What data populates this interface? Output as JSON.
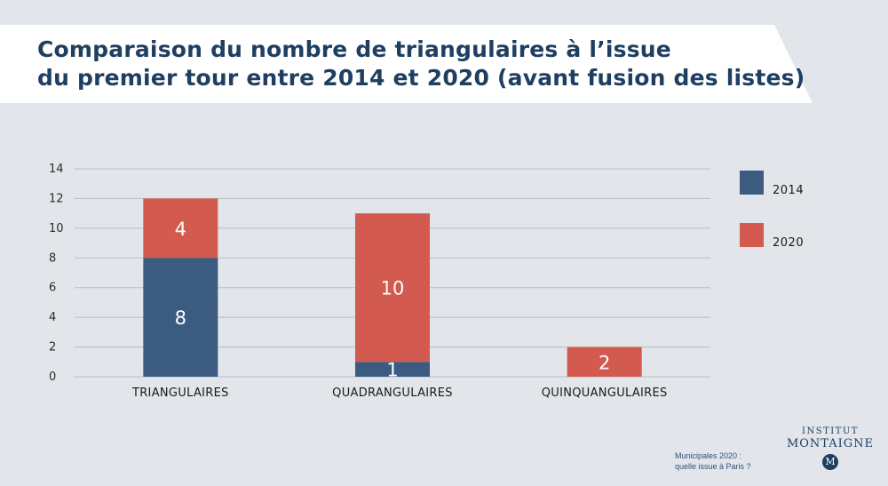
{
  "header": {
    "title_line1": "Comparaison du nombre de triangulaires à l’issue",
    "title_line2": "du premier tour entre 2014 et 2020 (avant fusion des listes)"
  },
  "colors": {
    "s2014": "#3b5c80",
    "s2020": "#d25a4f",
    "grid": "#b9bdc4"
  },
  "chart_data": {
    "type": "bar",
    "stacked": true,
    "title": "Comparaison du nombre de triangulaires à l’issue du premier tour entre 2014 et 2020 (avant fusion des listes)",
    "categories": [
      "TRIANGULAIRES",
      "QUADRANGULAIRES",
      "QUINQUANGULAIRES"
    ],
    "series": [
      {
        "name": "2014",
        "values": [
          8,
          1,
          0
        ]
      },
      {
        "name": "2020",
        "values": [
          4,
          10,
          2
        ]
      }
    ],
    "ylim": [
      0,
      14
    ],
    "yticks": [
      0,
      2,
      4,
      6,
      8,
      10,
      12,
      14
    ],
    "grid": true,
    "legend": "right",
    "xlabel": "",
    "ylabel": ""
  },
  "branding": {
    "logo_line1": "INSTITUT",
    "logo_line2": "MONTAIGNE",
    "logo_mark": "M",
    "footnote_line1": "Municipales 2020 :",
    "footnote_line2": "quelle issue à Paris ?"
  }
}
